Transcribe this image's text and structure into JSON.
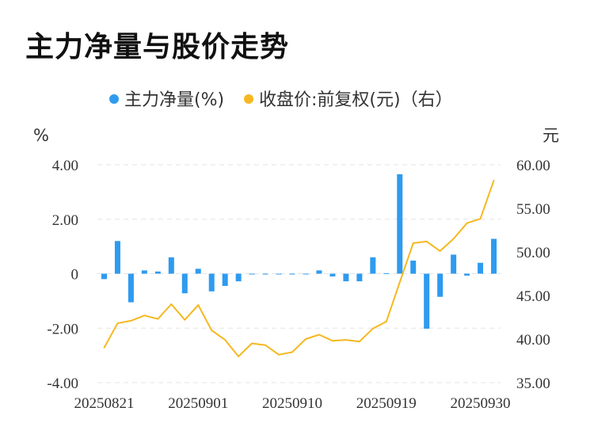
{
  "title": "主力净量与股价走势",
  "chart_data": {
    "type": "bar+line",
    "legend": [
      {
        "name": "主力净量(%)",
        "color": "#2E9BF0"
      },
      {
        "name": "收盘价:前复权(元)（右）",
        "color": "#F5B820"
      }
    ],
    "legend_placement": "top-center",
    "y_left_unit": "%",
    "y_right_unit": "元",
    "y_left_ticks": [
      "4.00",
      "2.00",
      "0",
      "-2.00",
      "-4.00"
    ],
    "y_left_range": [
      -4,
      4
    ],
    "y_right_ticks": [
      "60.00",
      "55.00",
      "50.00",
      "45.00",
      "40.00",
      "35.00"
    ],
    "y_right_range": [
      35,
      60
    ],
    "x_tick_labels": [
      "20250821",
      "20250901",
      "20250910",
      "20250919",
      "20250930"
    ],
    "x_tick_indices": [
      0,
      7,
      14,
      21,
      28
    ],
    "grid": "horizontal-dashed",
    "series": [
      {
        "name": "主力净量(%)",
        "type": "bar",
        "axis": "left",
        "values": [
          -0.2,
          1.2,
          -1.05,
          0.12,
          0.08,
          0.6,
          -0.72,
          0.18,
          -0.65,
          -0.45,
          -0.28,
          -0.03,
          -0.03,
          -0.02,
          -0.02,
          -0.02,
          0.12,
          -0.1,
          -0.28,
          -0.28,
          0.6,
          0.02,
          3.65,
          0.48,
          -2.02,
          -0.85,
          0.7,
          -0.07,
          0.4,
          1.28
        ]
      },
      {
        "name": "收盘价:前复权(元)（右）",
        "type": "line",
        "axis": "right",
        "values": [
          39.0,
          41.8,
          42.1,
          42.7,
          42.3,
          44.0,
          42.2,
          43.9,
          41.0,
          39.9,
          38.0,
          39.5,
          39.3,
          38.2,
          38.5,
          40.0,
          40.5,
          39.8,
          39.9,
          39.7,
          41.2,
          42.0,
          46.5,
          51.0,
          51.2,
          50.1,
          51.5,
          53.3,
          53.8,
          58.2
        ]
      }
    ]
  }
}
